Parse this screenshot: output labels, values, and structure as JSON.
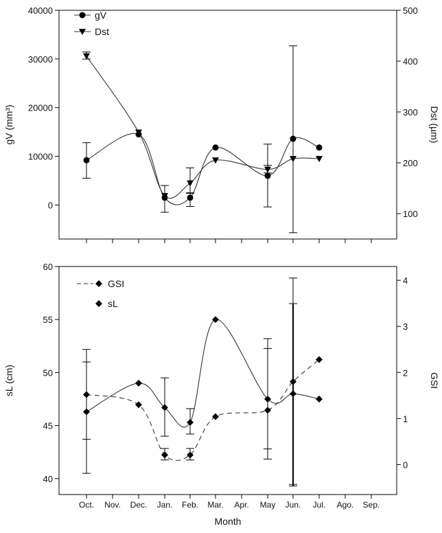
{
  "chart_data": [
    {
      "type": "line",
      "xlabel": "",
      "ylabel": "gV (mm³)",
      "y2label": "Dst (µm)",
      "ylim": [
        -7000,
        40000
      ],
      "y2lim": [
        50,
        500
      ],
      "yticks": [
        0,
        10000,
        20000,
        30000,
        40000
      ],
      "y2ticks": [
        100,
        200,
        300,
        400,
        500
      ],
      "grid": false,
      "legend": "top-left",
      "series": [
        {
          "name": "gV",
          "axis": "left",
          "marker": "circle",
          "x": [
            "Oct.",
            "Dec.",
            "Jan.",
            "Feb.",
            "Mar.",
            "May",
            "Jun.",
            "Jul."
          ],
          "values": [
            9200,
            14500,
            1500,
            1500,
            11800,
            6000,
            13600,
            11800
          ],
          "err_low": [
            5500,
            14500,
            -1500,
            -300,
            11800,
            -400,
            -5700,
            11800
          ],
          "err_high": [
            12800,
            14500,
            4000,
            2500,
            11800,
            12500,
            32700,
            11800
          ]
        },
        {
          "name": "Dst",
          "axis": "right",
          "marker": "triangle-down",
          "x": [
            "Oct.",
            "Dec.",
            "Jan.",
            "Feb.",
            "Mar.",
            "May",
            "Jun.",
            "Jul."
          ],
          "values": [
            410,
            260,
            135,
            160,
            205,
            187,
            208,
            208
          ],
          "err_low": [
            404,
            260,
            135,
            140,
            205,
            180,
            208,
            208
          ],
          "err_high": [
            418,
            260,
            135,
            190,
            205,
            195,
            208,
            208
          ]
        }
      ]
    },
    {
      "type": "line",
      "xlabel": "Month",
      "ylabel": "sL (cm)",
      "y2label": "GSI",
      "ylim": [
        38.5,
        60
      ],
      "y2lim": [
        -0.65,
        4.3
      ],
      "yticks": [
        40,
        45,
        50,
        55,
        60
      ],
      "y2ticks": [
        0,
        1,
        2,
        3,
        4
      ],
      "categories": [
        "Oct.",
        "Nov.",
        "Dec.",
        "Jan.",
        "Feb.",
        "Mar.",
        "Apr.",
        "May",
        "Jun.",
        "Jul.",
        "Ago.",
        "Sep."
      ],
      "grid": false,
      "legend": "top-left",
      "series": [
        {
          "name": "GSI",
          "axis": "right",
          "marker": "diamond",
          "style": "dashed",
          "x": [
            "Oct.",
            "Dec.",
            "Jan.",
            "Feb.",
            "Mar.",
            "May",
            "Jun.",
            "Jul."
          ],
          "values": [
            1.52,
            1.3,
            0.21,
            0.21,
            1.04,
            1.18,
            1.8,
            2.28
          ],
          "err_low": [
            0.55,
            1.3,
            0.1,
            0.1,
            1.04,
            0.12,
            -0.43,
            2.28
          ],
          "err_high": [
            2.5,
            1.3,
            0.35,
            0.35,
            1.04,
            2.52,
            4.05,
            2.28
          ]
        },
        {
          "name": "sL",
          "axis": "left",
          "marker": "diamond",
          "style": "solid",
          "x": [
            "Oct.",
            "Dec.",
            "Jan.",
            "Feb.",
            "Mar.",
            "May",
            "Jun.",
            "Jul."
          ],
          "values": [
            46.3,
            49.0,
            46.7,
            45.3,
            55.0,
            47.5,
            48.0,
            47.5
          ],
          "err_low": [
            40.5,
            49.0,
            44.0,
            44.2,
            55.0,
            42.8,
            39.3,
            47.5
          ],
          "err_high": [
            51.0,
            49.0,
            49.5,
            46.6,
            55.0,
            53.2,
            56.5,
            47.5
          ]
        }
      ]
    }
  ]
}
